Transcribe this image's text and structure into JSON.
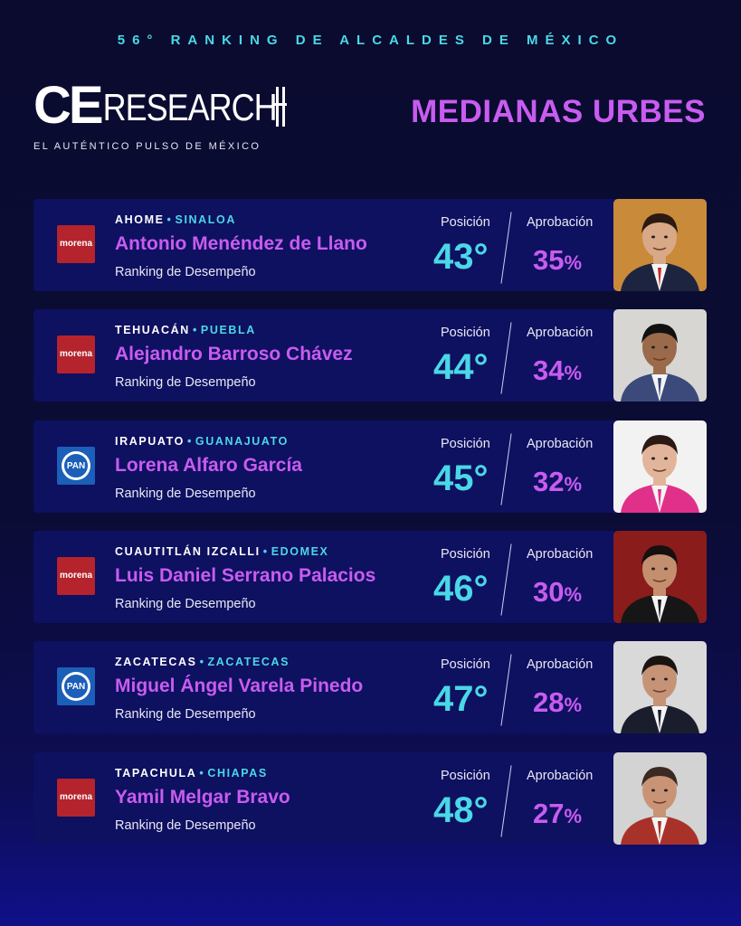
{
  "header": {
    "top_title": "56° RANKING DE ALCALDES DE MÉXICO",
    "logo_main": "CE",
    "logo_second": "RESEARCH",
    "logo_tagline": "EL AUTÉNTICO PULSO DE MÉXICO",
    "section_title": "MEDIANAS URBES"
  },
  "labels": {
    "position": "Posición",
    "approval": "Aprobación",
    "ranking": "Ranking de Desempeño"
  },
  "party_logos": {
    "morena": "morena",
    "pan": "PAN"
  },
  "colors": {
    "accent_cyan": "#4ad8e6",
    "accent_purple": "#c85cf0",
    "morena_red": "#b5232c",
    "pan_blue": "#1b5fb8",
    "card_bg": "#0e1060"
  },
  "mayors": [
    {
      "city": "AHOME",
      "state": "SINALOA",
      "name": "Antonio Menéndez de Llano",
      "party": "morena",
      "position": "43°",
      "approval": "35",
      "pct": "%",
      "photo_bg": "#c98a3a",
      "shirt": "#1d2440",
      "skin": "#d9a887",
      "hair": "#2a1a12",
      "tie": "#c22a2a"
    },
    {
      "city": "TEHUACÁN",
      "state": "PUEBLA",
      "name": "Alejandro Barroso Chávez",
      "party": "morena",
      "position": "44°",
      "approval": "34",
      "pct": "%",
      "photo_bg": "#d8d6d2",
      "shirt": "#3b4a7a",
      "skin": "#9a6a4a",
      "hair": "#111",
      "tie": "#3b4a7a"
    },
    {
      "city": "IRAPUATO",
      "state": "GUANAJUATO",
      "name": "Lorena Alfaro García",
      "party": "pan",
      "position": "45°",
      "approval": "32",
      "pct": "%",
      "photo_bg": "#f2f2f2",
      "shirt": "#e0308a",
      "skin": "#e2b59a",
      "hair": "#2b1a14",
      "tie": "#e0308a"
    },
    {
      "city": "CUAUTITLÁN IZCALLI",
      "state": "EDOMEX",
      "name": "Luis Daniel Serrano Palacios",
      "party": "morena",
      "position": "46°",
      "approval": "30",
      "pct": "%",
      "photo_bg": "#8a1c1c",
      "shirt": "#161616",
      "skin": "#c48f6e",
      "hair": "#161010",
      "tie": "#161616"
    },
    {
      "city": "ZACATECAS",
      "state": "ZACATECAS",
      "name": "Miguel Ángel Varela Pinedo",
      "party": "pan",
      "position": "47°",
      "approval": "28",
      "pct": "%",
      "photo_bg": "#d9d9d9",
      "shirt": "#1a1e2c",
      "skin": "#c69377",
      "hair": "#1a1410",
      "tie": "#1a1e2c"
    },
    {
      "city": "TAPACHULA",
      "state": "CHIAPAS",
      "name": "Yamil Melgar Bravo",
      "party": "morena",
      "position": "48°",
      "approval": "27",
      "pct": "%",
      "photo_bg": "#d3d3d3",
      "shirt": "#a8322a",
      "skin": "#c99476",
      "hair": "#3a2a22",
      "tie": "#a8322a"
    }
  ]
}
